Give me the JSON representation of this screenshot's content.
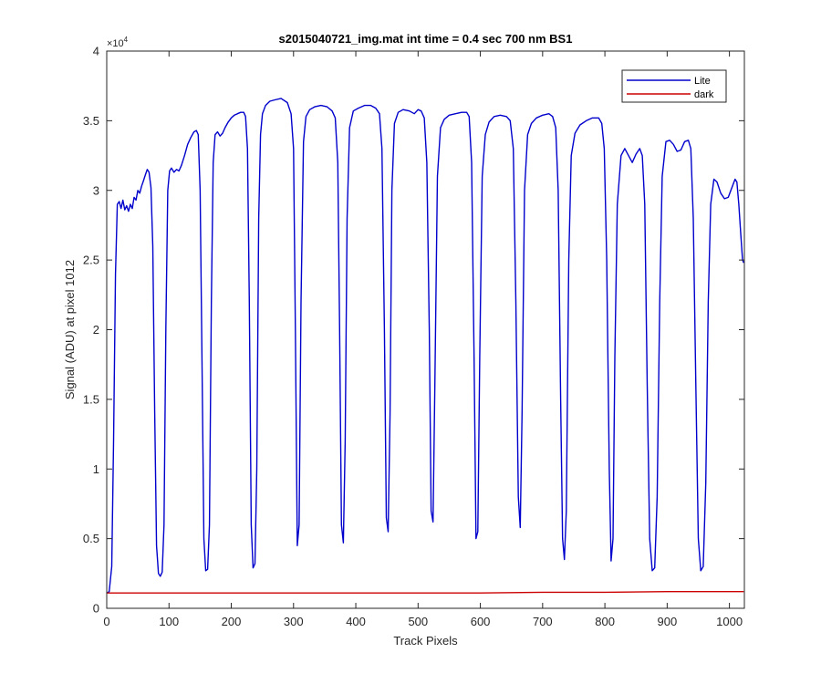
{
  "chart_data": {
    "type": "line",
    "title": "s2015040721_img.mat int time = 0.4 sec  700 nm BS1",
    "xlabel": "Track Pixels",
    "ylabel": "Signal (ADU) at pixel 1012",
    "xlim": [
      0,
      1024
    ],
    "ylim": [
      0,
      40000
    ],
    "x_ticks": [
      0,
      100,
      200,
      300,
      400,
      500,
      600,
      700,
      800,
      900,
      1000
    ],
    "x_tick_labels": [
      "0",
      "100",
      "200",
      "300",
      "400",
      "500",
      "600",
      "700",
      "800",
      "900",
      "1000"
    ],
    "y_ticks": [
      0,
      5000,
      10000,
      15000,
      20000,
      25000,
      30000,
      35000,
      40000
    ],
    "y_tick_labels": [
      "0",
      "0.5",
      "1",
      "1.5",
      "2",
      "2.5",
      "3",
      "3.5",
      "4"
    ],
    "y_exponent_label": "×10",
    "y_exponent_power": "4",
    "grid": false,
    "legend_position": "top-right",
    "series": [
      {
        "name": "Lite",
        "color": "#0000cc",
        "points": [
          [
            0,
            1100
          ],
          [
            4,
            1200
          ],
          [
            8,
            3000
          ],
          [
            11,
            12000
          ],
          [
            14,
            24000
          ],
          [
            17,
            29000
          ],
          [
            20,
            29200
          ],
          [
            23,
            28700
          ],
          [
            26,
            29300
          ],
          [
            29,
            28600
          ],
          [
            32,
            28900
          ],
          [
            35,
            28500
          ],
          [
            38,
            29000
          ],
          [
            41,
            28700
          ],
          [
            44,
            29500
          ],
          [
            47,
            29300
          ],
          [
            50,
            30000
          ],
          [
            53,
            29800
          ],
          [
            56,
            30300
          ],
          [
            59,
            30700
          ],
          [
            62,
            31100
          ],
          [
            65,
            31500
          ],
          [
            68,
            31300
          ],
          [
            71,
            30200
          ],
          [
            74,
            26000
          ],
          [
            77,
            14000
          ],
          [
            80,
            4500
          ],
          [
            83,
            2500
          ],
          [
            86,
            2300
          ],
          [
            89,
            2600
          ],
          [
            92,
            6000
          ],
          [
            95,
            20000
          ],
          [
            98,
            30000
          ],
          [
            101,
            31400
          ],
          [
            104,
            31600
          ],
          [
            108,
            31300
          ],
          [
            112,
            31500
          ],
          [
            116,
            31400
          ],
          [
            120,
            31800
          ],
          [
            125,
            32500
          ],
          [
            130,
            33300
          ],
          [
            135,
            33800
          ],
          [
            140,
            34200
          ],
          [
            144,
            34300
          ],
          [
            147,
            34000
          ],
          [
            150,
            30000
          ],
          [
            153,
            18000
          ],
          [
            156,
            5000
          ],
          [
            159,
            2700
          ],
          [
            162,
            2800
          ],
          [
            165,
            6000
          ],
          [
            168,
            22000
          ],
          [
            171,
            32000
          ],
          [
            174,
            34000
          ],
          [
            178,
            34200
          ],
          [
            182,
            33900
          ],
          [
            186,
            34100
          ],
          [
            190,
            34500
          ],
          [
            195,
            34900
          ],
          [
            200,
            35200
          ],
          [
            205,
            35400
          ],
          [
            210,
            35500
          ],
          [
            215,
            35600
          ],
          [
            220,
            35600
          ],
          [
            223,
            35300
          ],
          [
            226,
            33000
          ],
          [
            229,
            22000
          ],
          [
            232,
            6000
          ],
          [
            235,
            2900
          ],
          [
            238,
            3200
          ],
          [
            241,
            10000
          ],
          [
            244,
            28000
          ],
          [
            247,
            34000
          ],
          [
            250,
            35500
          ],
          [
            255,
            36100
          ],
          [
            262,
            36400
          ],
          [
            270,
            36500
          ],
          [
            280,
            36600
          ],
          [
            290,
            36300
          ],
          [
            296,
            35500
          ],
          [
            300,
            33000
          ],
          [
            303,
            20000
          ],
          [
            306,
            4500
          ],
          [
            309,
            6000
          ],
          [
            312,
            22000
          ],
          [
            316,
            33500
          ],
          [
            320,
            35300
          ],
          [
            326,
            35800
          ],
          [
            334,
            36000
          ],
          [
            344,
            36100
          ],
          [
            354,
            36000
          ],
          [
            362,
            35700
          ],
          [
            367,
            35200
          ],
          [
            371,
            32000
          ],
          [
            374,
            20000
          ],
          [
            377,
            6000
          ],
          [
            380,
            4700
          ],
          [
            383,
            12000
          ],
          [
            386,
            28000
          ],
          [
            390,
            34500
          ],
          [
            396,
            35700
          ],
          [
            404,
            35900
          ],
          [
            414,
            36100
          ],
          [
            424,
            36100
          ],
          [
            432,
            35900
          ],
          [
            438,
            35500
          ],
          [
            442,
            33000
          ],
          [
            446,
            20000
          ],
          [
            449,
            6500
          ],
          [
            452,
            5500
          ],
          [
            455,
            14000
          ],
          [
            458,
            30000
          ],
          [
            462,
            34800
          ],
          [
            468,
            35600
          ],
          [
            476,
            35800
          ],
          [
            486,
            35700
          ],
          [
            494,
            35500
          ],
          [
            500,
            35800
          ],
          [
            505,
            35700
          ],
          [
            510,
            35200
          ],
          [
            514,
            32000
          ],
          [
            518,
            20000
          ],
          [
            521,
            7000
          ],
          [
            524,
            6200
          ],
          [
            527,
            16000
          ],
          [
            531,
            31000
          ],
          [
            536,
            34500
          ],
          [
            542,
            35100
          ],
          [
            550,
            35400
          ],
          [
            560,
            35500
          ],
          [
            570,
            35600
          ],
          [
            578,
            35600
          ],
          [
            582,
            35300
          ],
          [
            586,
            32000
          ],
          [
            590,
            18000
          ],
          [
            593,
            5000
          ],
          [
            596,
            5500
          ],
          [
            599,
            18000
          ],
          [
            603,
            31000
          ],
          [
            608,
            34000
          ],
          [
            614,
            34900
          ],
          [
            622,
            35300
          ],
          [
            632,
            35400
          ],
          [
            642,
            35300
          ],
          [
            648,
            35000
          ],
          [
            653,
            33000
          ],
          [
            657,
            22000
          ],
          [
            661,
            8000
          ],
          [
            664,
            5800
          ],
          [
            667,
            14000
          ],
          [
            671,
            30000
          ],
          [
            676,
            34000
          ],
          [
            682,
            34800
          ],
          [
            690,
            35200
          ],
          [
            700,
            35400
          ],
          [
            710,
            35500
          ],
          [
            716,
            35300
          ],
          [
            721,
            34500
          ],
          [
            725,
            30000
          ],
          [
            729,
            15000
          ],
          [
            732,
            5000
          ],
          [
            735,
            3500
          ],
          [
            738,
            7000
          ],
          [
            742,
            25000
          ],
          [
            746,
            32500
          ],
          [
            752,
            34100
          ],
          [
            760,
            34700
          ],
          [
            770,
            35000
          ],
          [
            780,
            35200
          ],
          [
            790,
            35200
          ],
          [
            795,
            34800
          ],
          [
            799,
            33000
          ],
          [
            803,
            25000
          ],
          [
            807,
            10000
          ],
          [
            810,
            3400
          ],
          [
            813,
            5000
          ],
          [
            816,
            18000
          ],
          [
            820,
            29000
          ],
          [
            826,
            32500
          ],
          [
            832,
            33000
          ],
          [
            838,
            32500
          ],
          [
            844,
            32000
          ],
          [
            850,
            32600
          ],
          [
            856,
            33000
          ],
          [
            860,
            32500
          ],
          [
            864,
            29000
          ],
          [
            868,
            16000
          ],
          [
            872,
            5000
          ],
          [
            876,
            2700
          ],
          [
            880,
            2900
          ],
          [
            884,
            8000
          ],
          [
            888,
            22000
          ],
          [
            892,
            31000
          ],
          [
            898,
            33500
          ],
          [
            904,
            33600
          ],
          [
            910,
            33300
          ],
          [
            916,
            32800
          ],
          [
            922,
            32900
          ],
          [
            928,
            33500
          ],
          [
            934,
            33600
          ],
          [
            938,
            33000
          ],
          [
            942,
            28000
          ],
          [
            946,
            16000
          ],
          [
            950,
            5000
          ],
          [
            954,
            2700
          ],
          [
            958,
            3000
          ],
          [
            962,
            9000
          ],
          [
            966,
            22000
          ],
          [
            970,
            29000
          ],
          [
            975,
            30800
          ],
          [
            980,
            30600
          ],
          [
            986,
            29800
          ],
          [
            992,
            29400
          ],
          [
            998,
            29500
          ],
          [
            1004,
            30200
          ],
          [
            1009,
            30800
          ],
          [
            1012,
            30600
          ],
          [
            1015,
            29000
          ],
          [
            1018,
            27000
          ],
          [
            1021,
            25000
          ],
          [
            1023,
            24800
          ]
        ]
      },
      {
        "name": "dark",
        "color": "#cc0000",
        "points": [
          [
            0,
            1100
          ],
          [
            100,
            1100
          ],
          [
            200,
            1100
          ],
          [
            300,
            1100
          ],
          [
            400,
            1100
          ],
          [
            500,
            1100
          ],
          [
            600,
            1100
          ],
          [
            700,
            1150
          ],
          [
            800,
            1150
          ],
          [
            900,
            1200
          ],
          [
            1000,
            1200
          ],
          [
            1023,
            1200
          ]
        ]
      }
    ]
  }
}
